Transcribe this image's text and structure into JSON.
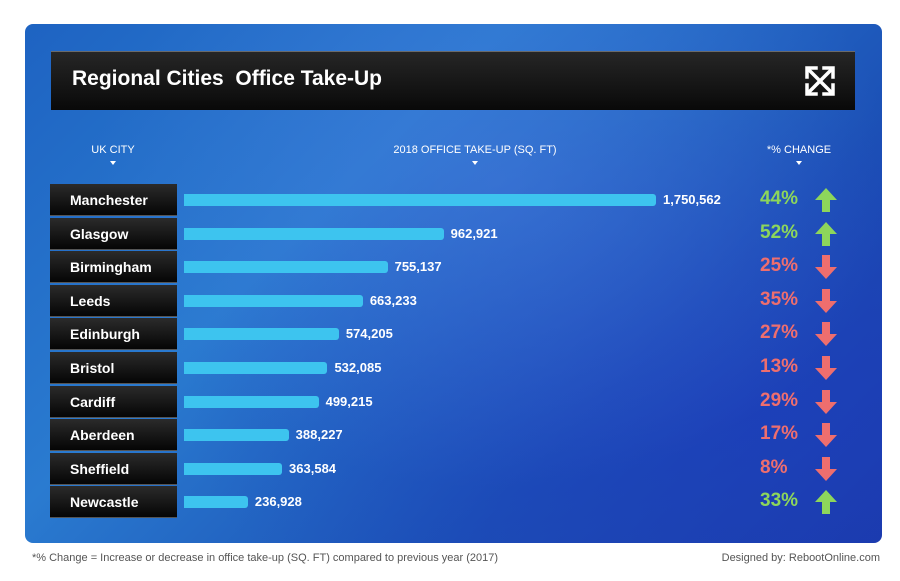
{
  "title": "Regional Cities  Office Take-Up",
  "icons": {
    "expand": "expand-arrows-icon",
    "up": "up-arrow-icon",
    "down": "down-arrow-icon"
  },
  "headers": {
    "city": "UK CITY",
    "takeup": "2018 OFFICE TAKE-UP (SQ. FT)",
    "change": "*% CHANGE"
  },
  "colors": {
    "bar": "#3dc4ef",
    "up": "#8dd65b",
    "down": "#ee6e6e"
  },
  "chart_data": {
    "type": "bar",
    "orientation": "horizontal",
    "title": "Regional Cities  Office Take-Up",
    "xlabel": "2018 OFFICE TAKE-UP (SQ. FT)",
    "ylabel": "UK CITY",
    "categories": [
      "Manchester",
      "Glasgow",
      "Birmingham",
      "Leeds",
      "Edinburgh",
      "Bristol",
      "Cardiff",
      "Aberdeen",
      "Sheffield",
      "Newcastle"
    ],
    "values": [
      1750562,
      962921,
      755137,
      663233,
      574205,
      532085,
      499215,
      388227,
      363584,
      236928
    ],
    "value_labels": [
      "1,750,562",
      "962,921",
      "755,137",
      "663,233",
      "574,205",
      "532,085",
      "499,215",
      "388,227",
      "363,584",
      "236,928"
    ],
    "pct_change": [
      "44%",
      "52%",
      "25%",
      "35%",
      "27%",
      "13%",
      "29%",
      "17%",
      "8%",
      "33%"
    ],
    "direction": [
      "up",
      "up",
      "down",
      "down",
      "down",
      "down",
      "down",
      "down",
      "down",
      "up"
    ],
    "xlim": [
      0,
      1750562
    ]
  },
  "footnote": "*% Change = Increase or decrease in office take-up (SQ. FT) compared to previous year (2017)",
  "credit": "Designed by: RebootOnline.com"
}
